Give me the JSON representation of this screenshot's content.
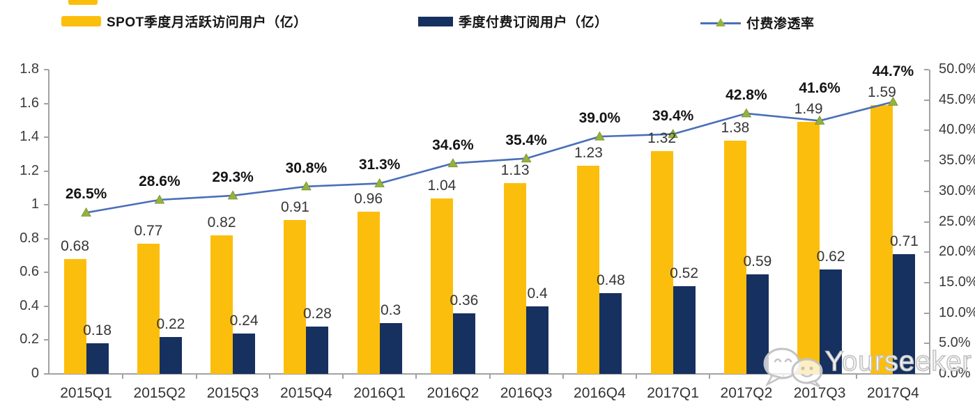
{
  "legend": {
    "items": [
      {
        "label": "SPOT季度月活跃访问用户（亿）",
        "color": "#FCBE0D",
        "type": "bar"
      },
      {
        "label": "季度付费订阅用户（亿）",
        "color": "#16305F",
        "type": "bar"
      },
      {
        "label": "付费渗透率",
        "color": "#4A6FB8",
        "marker_color": "#97B23C",
        "type": "line"
      }
    ]
  },
  "watermark": {
    "text": "Yourseeker",
    "icon": "chat-bubbles-icon"
  },
  "chart_data": {
    "type": "bar",
    "subtype": "grouped-bars-with-line",
    "categories": [
      "2015Q1",
      "2015Q2",
      "2015Q3",
      "2015Q4",
      "2016Q1",
      "2016Q2",
      "2016Q3",
      "2016Q4",
      "2017Q1",
      "2017Q2",
      "2017Q3",
      "2017Q4"
    ],
    "series": [
      {
        "name": "SPOT季度月活跃访问用户（亿）",
        "type": "bar",
        "axis": "left",
        "color": "#FCBE0D",
        "values": [
          0.68,
          0.77,
          0.82,
          0.91,
          0.96,
          1.04,
          1.13,
          1.23,
          1.32,
          1.38,
          1.49,
          1.59
        ],
        "labels": [
          "0.68",
          "0.77",
          "0.82",
          "0.91",
          "0.96",
          "1.04",
          "1.13",
          "1.23",
          "1.32",
          "1.38",
          "1.49",
          "1.59"
        ]
      },
      {
        "name": "季度付费订阅用户（亿）",
        "type": "bar",
        "axis": "left",
        "color": "#16305F",
        "values": [
          0.18,
          0.22,
          0.24,
          0.28,
          0.3,
          0.36,
          0.4,
          0.48,
          0.52,
          0.59,
          0.62,
          0.71
        ],
        "labels": [
          "0.18",
          "0.22",
          "0.24",
          "0.28",
          "0.3",
          "0.36",
          "0.4",
          "0.48",
          "0.52",
          "0.59",
          "0.62",
          "0.71"
        ]
      },
      {
        "name": "付费渗透率",
        "type": "line",
        "axis": "right",
        "color": "#4A6FB8",
        "marker": "triangle-up",
        "marker_color": "#97B23C",
        "values": [
          26.5,
          28.6,
          29.3,
          30.8,
          31.3,
          34.6,
          35.4,
          39.0,
          39.4,
          42.8,
          41.6,
          44.7
        ],
        "labels": [
          "26.5%",
          "28.6%",
          "29.3%",
          "30.8%",
          "31.3%",
          "34.6%",
          "35.4%",
          "39.0%",
          "39.4%",
          "42.8%",
          "41.6%",
          "44.7%"
        ]
      }
    ],
    "left_axis": {
      "min": 0,
      "max": 1.8,
      "ticks": [
        "1.8",
        "1.6",
        "1.4",
        "1.2",
        "1",
        "0.8",
        "0.6",
        "0.4",
        "0.2",
        "0"
      ]
    },
    "right_axis": {
      "min": 0,
      "max": 50,
      "ticks": [
        "50.0%",
        "45.0%",
        "40.0%",
        "35.0%",
        "30.0%",
        "25.0%",
        "20.0%",
        "15.0%",
        "10.0%",
        "5.0%",
        "0.0%"
      ]
    },
    "grid": false,
    "legend_position": "top",
    "title": ""
  }
}
